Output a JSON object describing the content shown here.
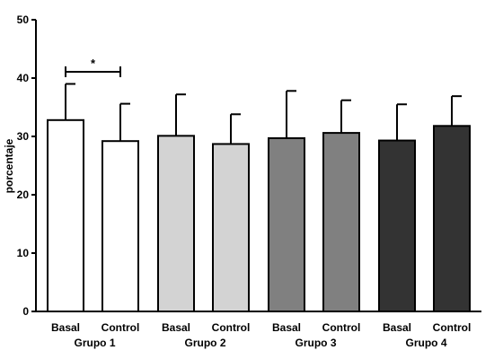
{
  "chart_data": {
    "type": "bar",
    "ylabel": "porcentaje",
    "xlabel": "",
    "ylim": [
      0,
      50
    ],
    "yticks": [
      0,
      10,
      20,
      30,
      40,
      50
    ],
    "grid": false,
    "categories": [
      "Basal",
      "Control",
      "Basal",
      "Control",
      "Basal",
      "Control",
      "Basal",
      "Control"
    ],
    "groups": [
      "Grupo 1",
      "Grupo 2",
      "Grupo 3",
      "Grupo 4"
    ],
    "values": [
      32.8,
      29.2,
      30.1,
      28.7,
      29.7,
      30.6,
      29.3,
      31.8
    ],
    "error_upper": [
      39.0,
      35.6,
      37.2,
      33.8,
      37.8,
      36.2,
      35.5,
      36.9
    ],
    "colors": [
      "#ffffff",
      "#ffffff",
      "#d3d3d3",
      "#d3d3d3",
      "#808080",
      "#808080",
      "#333333",
      "#333333"
    ],
    "significance": {
      "between": [
        0,
        1
      ],
      "label": "*"
    }
  }
}
